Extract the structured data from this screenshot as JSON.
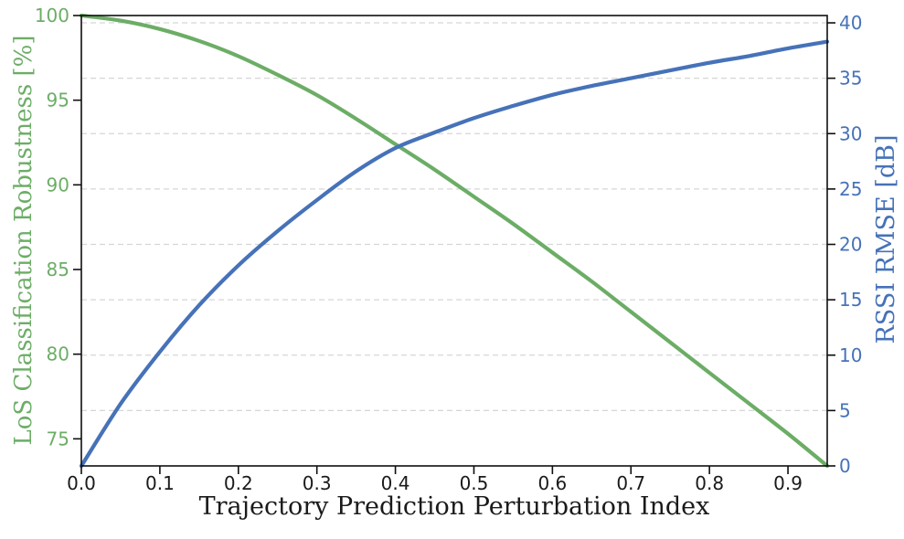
{
  "chart_data": {
    "type": "line",
    "title": "",
    "xlabel": "Trajectory Prediction Perturbation Index",
    "x": [
      0.0,
      0.05,
      0.1,
      0.15,
      0.2,
      0.25,
      0.3,
      0.35,
      0.4,
      0.45,
      0.5,
      0.55,
      0.6,
      0.65,
      0.7,
      0.75,
      0.8,
      0.85,
      0.9,
      0.95
    ],
    "series": [
      {
        "name": "LoS Classification Robustness [%]",
        "axis": "left",
        "color": "#6CAD66",
        "stroke_width": 4.2,
        "values": [
          100.0,
          99.7,
          99.2,
          98.5,
          97.6,
          96.5,
          95.3,
          93.9,
          92.4,
          90.9,
          89.3,
          87.7,
          86.0,
          84.3,
          82.5,
          80.7,
          78.9,
          77.1,
          75.3,
          73.4
        ]
      },
      {
        "name": "RSSI RMSE [dB]",
        "axis": "right",
        "color": "#4672B8",
        "stroke_width": 4.2,
        "values": [
          0.0,
          5.6,
          10.3,
          14.5,
          18.1,
          21.2,
          24.0,
          26.6,
          28.7,
          30.1,
          31.4,
          32.5,
          33.5,
          34.3,
          35.0,
          35.7,
          36.4,
          37.0,
          37.7,
          38.3
        ]
      }
    ],
    "axes": {
      "x": {
        "label": "Trajectory Prediction Perturbation Index",
        "color": "#1a1a1a",
        "min": 0.0,
        "max": 0.95,
        "ticks": [
          0.0,
          0.1,
          0.2,
          0.3,
          0.4,
          0.5,
          0.6,
          0.7,
          0.8,
          0.9
        ],
        "tick_labels": [
          "0.0",
          "0.1",
          "0.2",
          "0.3",
          "0.4",
          "0.5",
          "0.6",
          "0.7",
          "0.8",
          "0.9"
        ]
      },
      "left": {
        "label": "LoS Classification Robustness [%]",
        "color": "#6CAD66",
        "min": 73.4,
        "max": 100.0,
        "ticks": [
          75,
          80,
          85,
          90,
          95,
          100
        ],
        "tick_labels": [
          "75",
          "80",
          "85",
          "90",
          "95",
          "100"
        ]
      },
      "right": {
        "label": "RSSI RMSE [dB]",
        "color": "#4672B8",
        "min": 0.0,
        "max": 40.66,
        "ticks": [
          0,
          5,
          10,
          15,
          20,
          25,
          30,
          35,
          40
        ],
        "tick_labels": [
          "0",
          "5",
          "10",
          "15",
          "20",
          "25",
          "30",
          "35",
          "40"
        ],
        "grid_values": [
          5,
          10,
          15,
          20,
          25,
          30,
          35,
          40
        ]
      }
    },
    "grid": {
      "on": true,
      "color": "#d6d6d6",
      "dash": "6,4",
      "orientation": "horizontal"
    },
    "frame_color": "#0f0f0f",
    "legend": "none"
  }
}
